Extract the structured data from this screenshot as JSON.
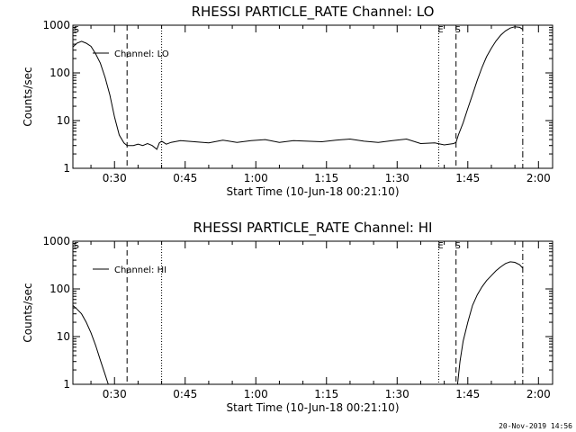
{
  "footer": {
    "timestamp": "20-Nov-2019 14:56"
  },
  "colors": {
    "line": "#000000",
    "background": "#ffffff"
  },
  "chart_data": [
    {
      "type": "line",
      "title": "RHESSI PARTICLE_RATE Channel: LO",
      "xlabel": "Start Time (10-Jun-18 00:21:10)",
      "ylabel": "Counts/sec",
      "yscale": "log",
      "ylim": [
        1,
        1000
      ],
      "xlim": [
        "00:21:10",
        "02:03:00"
      ],
      "x_ticks": [
        "00:30",
        "00:45",
        "01:00",
        "01:15",
        "01:30",
        "01:45",
        "02:00"
      ],
      "y_ticks": [
        "1",
        "10",
        "100",
        "1000"
      ],
      "legend": {
        "label": "Channel: LO",
        "placement": "top-left"
      },
      "markers": [
        {
          "label": "S",
          "time": "00:21:30",
          "style": "none"
        },
        {
          "label": "",
          "time": "00:32:40",
          "style": "dashed"
        },
        {
          "label": "",
          "time": "00:40:00",
          "style": "dotted"
        },
        {
          "label": "E",
          "time": "01:38:50",
          "style": "dotted"
        },
        {
          "label": "S",
          "time": "01:42:30",
          "style": "dashed"
        },
        {
          "label": "",
          "time": "01:56:40",
          "style": "dash-dot"
        }
      ],
      "series": [
        {
          "x": [
            "00:21:10",
            "00:22:00",
            "00:23:00",
            "00:24:00",
            "00:25:00",
            "00:26:00",
            "00:27:00",
            "00:28:00",
            "00:29:00",
            "00:30:00",
            "00:31:00",
            "00:32:00",
            "00:32:40",
            "00:34:00",
            "00:35:00",
            "00:36:00",
            "00:37:00",
            "00:38:00",
            "00:39:00",
            "00:39:30",
            "00:40:00",
            "00:41:00",
            "00:42:00",
            "00:44:00",
            "00:47:00",
            "00:50:00",
            "00:53:00",
            "00:56:00",
            "00:59:00",
            "01:02:00",
            "01:05:00",
            "01:08:00",
            "01:11:00",
            "01:14:00",
            "01:17:00",
            "01:20:00",
            "01:23:00",
            "01:26:00",
            "01:29:00",
            "01:32:00",
            "01:35:00",
            "01:38:00",
            "01:40:00",
            "01:42:00",
            "01:42:30",
            "01:43:00",
            "01:44:00",
            "01:45:00",
            "01:46:00",
            "01:47:00",
            "01:48:00",
            "01:49:00",
            "01:50:00",
            "01:51:00",
            "01:52:00",
            "01:53:00",
            "01:54:00",
            "01:55:00",
            "01:56:00",
            "01:56:40"
          ],
          "y": [
            350,
            420,
            460,
            420,
            360,
            250,
            160,
            80,
            35,
            12,
            5,
            3.4,
            3,
            3,
            3.2,
            3,
            3.3,
            3,
            2.5,
            3.4,
            3.7,
            3.2,
            3.5,
            3.8,
            3.6,
            3.4,
            3.9,
            3.5,
            3.8,
            4,
            3.5,
            3.8,
            3.7,
            3.6,
            3.9,
            4.1,
            3.7,
            3.5,
            3.8,
            4.1,
            3.3,
            3.4,
            3.1,
            3.3,
            3.5,
            5,
            9,
            18,
            35,
            70,
            130,
            220,
            330,
            470,
            620,
            760,
            870,
            930,
            900,
            820
          ]
        }
      ]
    },
    {
      "type": "line",
      "title": "RHESSI PARTICLE_RATE Channel: HI",
      "xlabel": "Start Time (10-Jun-18 00:21:10)",
      "ylabel": "Counts/sec",
      "yscale": "log",
      "ylim": [
        1,
        1000
      ],
      "xlim": [
        "00:21:10",
        "02:03:00"
      ],
      "x_ticks": [
        "00:30",
        "00:45",
        "01:00",
        "01:15",
        "01:30",
        "01:45",
        "02:00"
      ],
      "y_ticks": [
        "1",
        "10",
        "100",
        "1000"
      ],
      "legend": {
        "label": "Channel: HI",
        "placement": "top-left"
      },
      "markers": [
        {
          "label": "S",
          "time": "00:21:30",
          "style": "none"
        },
        {
          "label": "",
          "time": "00:32:40",
          "style": "dashed"
        },
        {
          "label": "",
          "time": "00:40:00",
          "style": "dotted"
        },
        {
          "label": "E",
          "time": "01:38:50",
          "style": "dotted"
        },
        {
          "label": "S",
          "time": "01:42:30",
          "style": "dashed"
        },
        {
          "label": "",
          "time": "01:56:40",
          "style": "dash-dot"
        }
      ],
      "series": [
        {
          "x": [
            "00:21:10",
            "00:22:00",
            "00:23:00",
            "00:24:00",
            "00:25:00",
            "00:26:00",
            "00:27:00",
            "00:28:00",
            "00:28:40"
          ],
          "y": [
            45,
            38,
            30,
            20,
            12,
            6.5,
            3.2,
            1.6,
            1.0
          ]
        },
        {
          "x": [
            "01:42:50",
            "01:43:20",
            "01:44:00",
            "01:45:00",
            "01:46:00",
            "01:47:00",
            "01:48:00",
            "01:49:00",
            "01:50:00",
            "01:51:00",
            "01:52:00",
            "01:53:00",
            "01:54:00",
            "01:55:00",
            "01:56:00",
            "01:56:40"
          ],
          "y": [
            1.0,
            3,
            8,
            20,
            45,
            75,
            110,
            150,
            190,
            240,
            290,
            340,
            370,
            360,
            320,
            270
          ]
        }
      ]
    }
  ]
}
